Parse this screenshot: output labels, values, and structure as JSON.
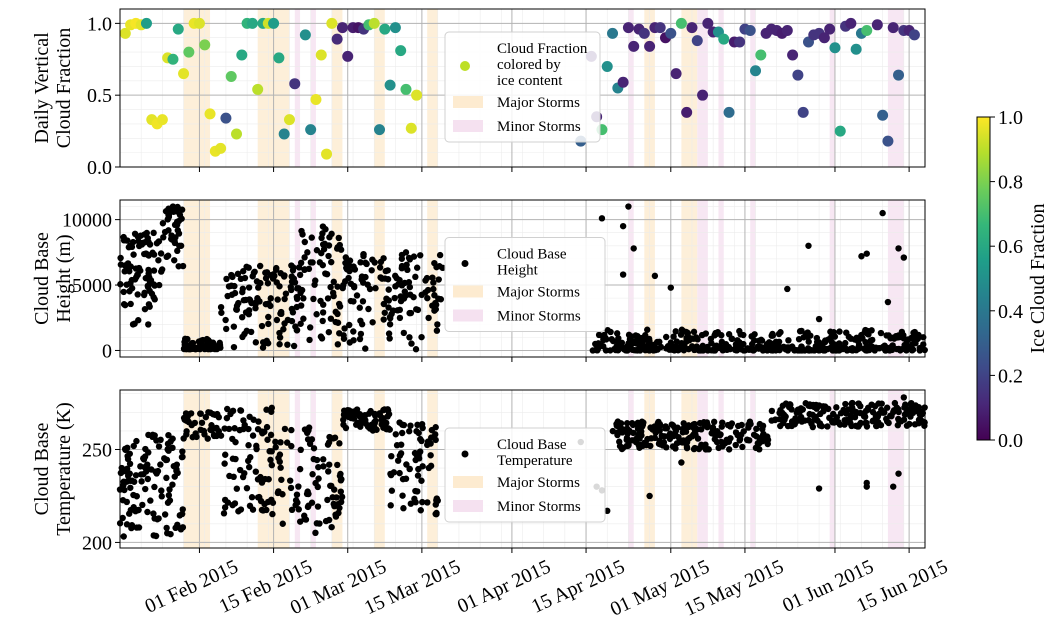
{
  "chart_data": [
    {
      "type": "scatter",
      "ylabel_lines": [
        "Daily Vertical",
        "Cloud Fraction"
      ],
      "ylim": [
        0,
        1.1
      ],
      "yticks": [
        0.0,
        0.5,
        1.0
      ],
      "ytick_labels": [
        "0.0",
        "0.5",
        "1.0"
      ],
      "legend": {
        "placement": "center",
        "entries": [
          {
            "kind": "marker",
            "label_lines": [
              "Cloud Fraction",
              "colored by",
              "ice content"
            ],
            "color": "#bddf26"
          },
          {
            "kind": "patch",
            "label": "Major Storms",
            "color": "#fdebd0"
          },
          {
            "kind": "patch",
            "label": "Minor Storms",
            "color": "#f5e1f0"
          }
        ]
      },
      "points": [
        [
          "2015-01-18",
          0.93,
          0.95
        ],
        [
          "2015-01-19",
          0.99,
          0.97
        ],
        [
          "2015-01-20",
          1.0,
          0.99
        ],
        [
          "2015-01-21",
          0.99,
          0.96
        ],
        [
          "2015-01-22",
          1.0,
          0.55
        ],
        [
          "2015-01-23",
          0.33,
          0.96
        ],
        [
          "2015-01-24",
          0.3,
          0.98
        ],
        [
          "2015-01-25",
          0.33,
          0.97
        ],
        [
          "2015-01-26",
          0.76,
          0.95
        ],
        [
          "2015-01-27",
          0.75,
          0.65
        ],
        [
          "2015-01-28",
          0.96,
          0.6
        ],
        [
          "2015-01-29",
          0.65,
          0.96
        ],
        [
          "2015-01-30",
          0.8,
          0.75
        ],
        [
          "2015-01-31",
          1.0,
          0.97
        ],
        [
          "2015-02-01",
          1.0,
          0.95
        ],
        [
          "2015-02-02",
          0.85,
          0.8
        ],
        [
          "2015-02-03",
          0.37,
          0.97
        ],
        [
          "2015-02-04",
          0.11,
          0.97
        ],
        [
          "2015-02-05",
          0.13,
          0.96
        ],
        [
          "2015-02-06",
          0.34,
          0.25
        ],
        [
          "2015-02-07",
          0.63,
          0.75
        ],
        [
          "2015-02-08",
          0.23,
          0.9
        ],
        [
          "2015-02-09",
          0.78,
          0.6
        ],
        [
          "2015-02-10",
          1.0,
          0.65
        ],
        [
          "2015-02-11",
          1.0,
          0.6
        ],
        [
          "2015-02-12",
          0.54,
          0.9
        ],
        [
          "2015-02-13",
          1.0,
          0.6
        ],
        [
          "2015-02-14",
          1.0,
          0.93
        ],
        [
          "2015-02-15",
          1.0,
          0.55
        ],
        [
          "2015-02-16",
          0.76,
          0.6
        ],
        [
          "2015-02-17",
          0.23,
          0.45
        ],
        [
          "2015-02-18",
          0.33,
          0.95
        ],
        [
          "2015-02-19",
          0.58,
          0.15
        ],
        [
          "2015-02-21",
          0.92,
          0.5
        ],
        [
          "2015-02-22",
          0.26,
          0.45
        ],
        [
          "2015-02-23",
          0.47,
          0.97
        ],
        [
          "2015-02-24",
          0.78,
          0.95
        ],
        [
          "2015-02-25",
          0.09,
          0.96
        ],
        [
          "2015-02-26",
          1.0,
          0.95
        ],
        [
          "2015-02-27",
          0.89,
          0.12
        ],
        [
          "2015-02-28",
          0.97,
          0.1
        ],
        [
          "2015-03-01",
          0.77,
          0.1
        ],
        [
          "2015-03-02",
          0.97,
          0.08
        ],
        [
          "2015-03-03",
          0.97,
          0.05
        ],
        [
          "2015-03-04",
          0.96,
          0.15
        ],
        [
          "2015-03-05",
          0.99,
          0.7
        ],
        [
          "2015-03-06",
          1.0,
          0.9
        ],
        [
          "2015-03-07",
          0.26,
          0.45
        ],
        [
          "2015-03-08",
          0.96,
          0.6
        ],
        [
          "2015-03-09",
          0.57,
          0.5
        ],
        [
          "2015-03-10",
          0.97,
          0.5
        ],
        [
          "2015-03-11",
          0.81,
          0.6
        ],
        [
          "2015-03-12",
          0.54,
          0.7
        ],
        [
          "2015-03-13",
          0.27,
          0.95
        ],
        [
          "2015-03-14",
          0.5,
          0.95
        ],
        [
          "2015-04-14",
          0.18,
          0.3
        ],
        [
          "2015-04-16",
          0.77,
          0.1
        ],
        [
          "2015-04-17",
          0.35,
          0.1
        ],
        [
          "2015-04-18",
          0.26,
          0.7
        ],
        [
          "2015-04-19",
          0.7,
          0.5
        ],
        [
          "2015-04-20",
          0.93,
          0.4
        ],
        [
          "2015-04-21",
          0.55,
          0.45
        ],
        [
          "2015-04-22",
          0.59,
          0.1
        ],
        [
          "2015-04-23",
          0.97,
          0.1
        ],
        [
          "2015-04-24",
          0.84,
          0.1
        ],
        [
          "2015-04-25",
          0.96,
          0.1
        ],
        [
          "2015-04-26",
          0.93,
          0.15
        ],
        [
          "2015-04-27",
          0.84,
          0.1
        ],
        [
          "2015-04-28",
          0.97,
          0.1
        ],
        [
          "2015-04-29",
          0.97,
          0.15
        ],
        [
          "2015-04-30",
          0.9,
          0.05
        ],
        [
          "2015-05-01",
          0.93,
          0.25
        ],
        [
          "2015-05-02",
          0.65,
          0.1
        ],
        [
          "2015-05-03",
          1.0,
          0.7
        ],
        [
          "2015-05-04",
          0.38,
          0.08
        ],
        [
          "2015-05-05",
          0.97,
          0.1
        ],
        [
          "2015-05-06",
          0.88,
          0.2
        ],
        [
          "2015-05-07",
          0.5,
          0.1
        ],
        [
          "2015-05-08",
          1.0,
          0.1
        ],
        [
          "2015-05-09",
          0.94,
          0.1
        ],
        [
          "2015-05-10",
          0.94,
          0.5
        ],
        [
          "2015-05-11",
          0.89,
          0.6
        ],
        [
          "2015-05-12",
          0.38,
          0.35
        ],
        [
          "2015-05-13",
          0.87,
          0.08
        ],
        [
          "2015-05-14",
          0.87,
          0.15
        ],
        [
          "2015-05-15",
          0.96,
          0.2
        ],
        [
          "2015-05-16",
          0.95,
          0.25
        ],
        [
          "2015-05-17",
          0.67,
          0.45
        ],
        [
          "2015-05-18",
          0.78,
          0.7
        ],
        [
          "2015-05-19",
          0.93,
          0.1
        ],
        [
          "2015-05-20",
          0.96,
          0.1
        ],
        [
          "2015-05-21",
          0.95,
          0.1
        ],
        [
          "2015-05-22",
          0.93,
          0.08
        ],
        [
          "2015-05-23",
          0.95,
          0.1
        ],
        [
          "2015-05-24",
          0.78,
          0.1
        ],
        [
          "2015-05-25",
          0.64,
          0.2
        ],
        [
          "2015-05-26",
          0.38,
          0.2
        ],
        [
          "2015-05-27",
          0.87,
          0.25
        ],
        [
          "2015-05-28",
          0.92,
          0.15
        ],
        [
          "2015-05-29",
          0.93,
          0.15
        ],
        [
          "2015-05-30",
          0.9,
          0.1
        ],
        [
          "2015-05-31",
          0.96,
          0.1
        ],
        [
          "2015-06-01",
          0.83,
          0.5
        ],
        [
          "2015-06-02",
          0.25,
          0.6
        ],
        [
          "2015-06-03",
          0.98,
          0.15
        ],
        [
          "2015-06-04",
          1.0,
          0.1
        ],
        [
          "2015-06-05",
          0.82,
          0.5
        ],
        [
          "2015-06-06",
          0.93,
          0.4
        ],
        [
          "2015-06-07",
          0.95,
          0.7
        ],
        [
          "2015-06-09",
          0.99,
          0.1
        ],
        [
          "2015-06-10",
          0.36,
          0.3
        ],
        [
          "2015-06-11",
          0.18,
          0.25
        ],
        [
          "2015-06-12",
          0.97,
          0.1
        ],
        [
          "2015-06-13",
          0.64,
          0.3
        ],
        [
          "2015-06-14",
          0.95,
          0.15
        ],
        [
          "2015-06-15",
          0.95,
          0.1
        ],
        [
          "2015-06-16",
          0.92,
          0.2
        ]
      ]
    },
    {
      "type": "scatter",
      "ylabel_lines": [
        "Cloud Base",
        "Height (m)"
      ],
      "ylim": [
        -500,
        11500
      ],
      "yticks": [
        0,
        5000,
        10000
      ],
      "ytick_labels": [
        "0",
        "5000",
        "10000"
      ],
      "legend": {
        "placement": "center",
        "entries": [
          {
            "kind": "marker",
            "label_lines": [
              "Cloud Base",
              "Height"
            ],
            "color": "#000000"
          },
          {
            "kind": "patch",
            "label": "Major Storms",
            "color": "#fdebd0"
          },
          {
            "kind": "patch",
            "label": "Minor Storms",
            "color": "#f5e1f0"
          }
        ]
      },
      "series": [
        {
          "x_start": "2015-01-17",
          "x_end": "2015-01-25",
          "low": 1800,
          "high": 9000,
          "n": 90
        },
        {
          "x_start": "2015-01-25",
          "x_end": "2015-01-29",
          "low": 6000,
          "high": 11000,
          "n": 40
        },
        {
          "x_start": "2015-01-29",
          "x_end": "2015-02-05",
          "low": 100,
          "high": 900,
          "n": 70
        },
        {
          "x_start": "2015-02-05",
          "x_end": "2015-02-20",
          "low": 50,
          "high": 6500,
          "n": 120
        },
        {
          "x_start": "2015-02-20",
          "x_end": "2015-02-28",
          "low": 50,
          "high": 9700,
          "n": 70
        },
        {
          "x_start": "2015-02-28",
          "x_end": "2015-03-19",
          "low": 50,
          "high": 7500,
          "n": 140
        },
        {
          "x_start": "2015-04-16",
          "x_end": "2015-06-18",
          "low": 0,
          "high": 1600,
          "n": 420
        }
      ],
      "outliers": [
        [
          "2015-01-27",
          11000
        ],
        [
          "2015-04-18",
          10100
        ],
        [
          "2015-04-23",
          11000
        ],
        [
          "2015-04-22",
          9500
        ],
        [
          "2015-04-24",
          7800
        ],
        [
          "2015-04-22",
          5800
        ],
        [
          "2015-04-28",
          5700
        ],
        [
          "2015-05-01",
          4800
        ],
        [
          "2015-05-23",
          4700
        ],
        [
          "2015-05-27",
          8000
        ],
        [
          "2015-05-29",
          2400
        ],
        [
          "2015-06-07",
          7400
        ],
        [
          "2015-06-06",
          7200
        ],
        [
          "2015-06-10",
          10500
        ],
        [
          "2015-06-13",
          7800
        ],
        [
          "2015-06-14",
          7100
        ],
        [
          "2015-06-11",
          3700
        ],
        [
          "2015-03-12",
          7500
        ],
        [
          "2015-03-10",
          4900
        ],
        [
          "2015-03-09",
          2000
        ]
      ]
    },
    {
      "type": "scatter",
      "ylabel_lines": [
        "Cloud Base",
        "Temperature (K)"
      ],
      "ylim": [
        197,
        282
      ],
      "yticks": [
        200,
        250
      ],
      "ytick_labels": [
        "200",
        "250"
      ],
      "legend": {
        "placement": "center",
        "entries": [
          {
            "kind": "marker",
            "label_lines": [
              "Cloud Base",
              "Temperature"
            ],
            "color": "#000000"
          },
          {
            "kind": "patch",
            "label": "Major Storms",
            "color": "#fdebd0"
          },
          {
            "kind": "patch",
            "label": "Minor Storms",
            "color": "#f5e1f0"
          }
        ]
      },
      "series": [
        {
          "x_start": "2015-01-17",
          "x_end": "2015-01-29",
          "low": 203,
          "high": 258,
          "n": 120
        },
        {
          "x_start": "2015-01-29",
          "x_end": "2015-02-05",
          "low": 255,
          "high": 270,
          "n": 40
        },
        {
          "x_start": "2015-02-05",
          "x_end": "2015-02-15",
          "low": 215,
          "high": 273,
          "n": 80
        },
        {
          "x_start": "2015-02-15",
          "x_end": "2015-02-28",
          "low": 205,
          "high": 262,
          "n": 90
        },
        {
          "x_start": "2015-02-28",
          "x_end": "2015-03-09",
          "low": 260,
          "high": 272,
          "n": 70
        },
        {
          "x_start": "2015-03-09",
          "x_end": "2015-03-18",
          "low": 215,
          "high": 265,
          "n": 70
        },
        {
          "x_start": "2015-04-20",
          "x_end": "2015-05-20",
          "low": 250,
          "high": 265,
          "n": 200
        },
        {
          "x_start": "2015-05-20",
          "x_end": "2015-06-18",
          "low": 262,
          "high": 275,
          "n": 200
        }
      ],
      "outliers": [
        [
          "2015-04-17",
          230
        ],
        [
          "2015-04-18",
          228
        ],
        [
          "2015-04-19",
          217
        ],
        [
          "2015-04-21",
          265
        ],
        [
          "2015-04-27",
          225
        ],
        [
          "2015-05-03",
          243
        ],
        [
          "2015-06-07",
          232
        ],
        [
          "2015-06-07",
          230
        ],
        [
          "2015-06-12",
          230
        ],
        [
          "2015-06-13",
          237
        ],
        [
          "2015-06-14",
          278
        ],
        [
          "2015-04-14",
          254
        ],
        [
          "2015-05-29",
          229
        ]
      ]
    }
  ],
  "shared": {
    "xlim": [
      "2015-01-17",
      "2015-06-18"
    ],
    "xticks": [
      "2015-02-01",
      "2015-02-15",
      "2015-03-01",
      "2015-03-15",
      "2015-04-01",
      "2015-04-15",
      "2015-05-01",
      "2015-05-15",
      "2015-06-01",
      "2015-06-15"
    ],
    "xtick_labels": [
      "01 Feb 2015",
      "15 Feb 2015",
      "01 Mar 2015",
      "15 Mar 2015",
      "01 Apr 2015",
      "15 Apr 2015",
      "01 May 2015",
      "15 May 2015",
      "01 Jun 2015",
      "15 Jun 2015"
    ],
    "major_storms": [
      [
        "2015-01-29",
        "2015-02-03"
      ],
      [
        "2015-02-12",
        "2015-02-18"
      ],
      [
        "2015-02-26",
        "2015-02-28"
      ],
      [
        "2015-03-06",
        "2015-03-08"
      ],
      [
        "2015-03-16",
        "2015-03-18"
      ],
      [
        "2015-04-26",
        "2015-04-28"
      ],
      [
        "2015-05-03",
        "2015-05-06"
      ]
    ],
    "minor_storms": [
      [
        "2015-02-19",
        "2015-02-20"
      ],
      [
        "2015-02-22",
        "2015-02-23"
      ],
      [
        "2015-04-23",
        "2015-04-24"
      ],
      [
        "2015-05-06",
        "2015-05-08"
      ],
      [
        "2015-05-10",
        "2015-05-11"
      ],
      [
        "2015-05-16",
        "2015-05-17"
      ],
      [
        "2015-05-31",
        "2015-06-01"
      ],
      [
        "2015-06-11",
        "2015-06-14"
      ]
    ],
    "grid": true,
    "colorbar": {
      "label": "Ice Cloud Fraction",
      "range": [
        0,
        1
      ],
      "ticks": [
        "0.0",
        "0.2",
        "0.4",
        "0.6",
        "0.8",
        "1.0"
      ],
      "colormap": "viridis"
    }
  }
}
